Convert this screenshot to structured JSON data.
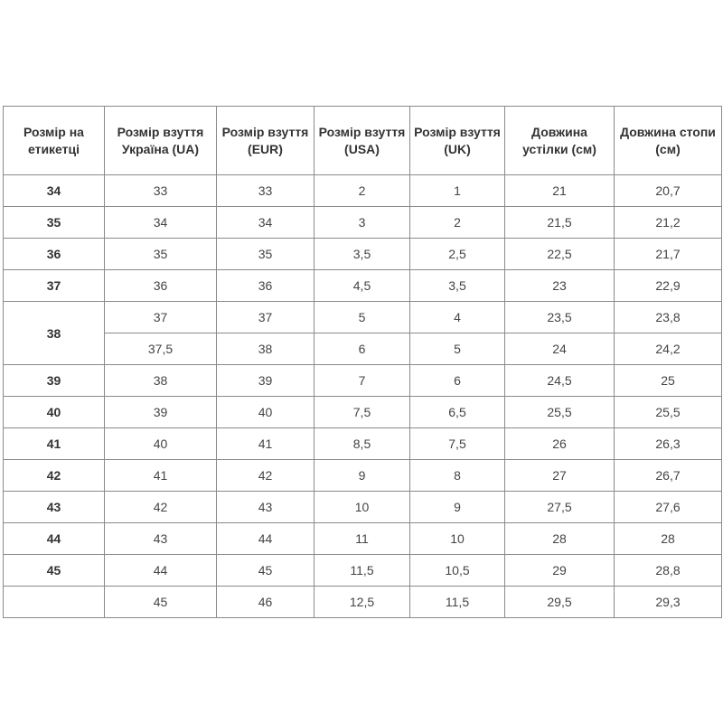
{
  "headers": [
    "Розмір на етикетці",
    "Розмір взуття Україна (UA)",
    "Розмір взуття (EUR)",
    "Розмір взуття (USA)",
    "Розмір взуття (UK)",
    "Довжина устілки (см)",
    "Довжина стопи (см)"
  ],
  "rows": [
    {
      "label": "34",
      "label_rowspan": 1,
      "cells": [
        "33",
        "33",
        "2",
        "1",
        "21",
        "20,7"
      ]
    },
    {
      "label": "35",
      "label_rowspan": 1,
      "cells": [
        "34",
        "34",
        "3",
        "2",
        "21,5",
        "21,2"
      ]
    },
    {
      "label": "36",
      "label_rowspan": 1,
      "cells": [
        "35",
        "35",
        "3,5",
        "2,5",
        "22,5",
        "21,7"
      ]
    },
    {
      "label": "37",
      "label_rowspan": 1,
      "cells": [
        "36",
        "36",
        "4,5",
        "3,5",
        "23",
        "22,9"
      ]
    },
    {
      "label": "38",
      "label_rowspan": 2,
      "cells": [
        "37",
        "37",
        "5",
        "4",
        "23,5",
        "23,8"
      ]
    },
    {
      "label": null,
      "cells": [
        "37,5",
        "38",
        "6",
        "5",
        "24",
        "24,2"
      ]
    },
    {
      "label": "39",
      "label_rowspan": 1,
      "cells": [
        "38",
        "39",
        "7",
        "6",
        "24,5",
        "25"
      ]
    },
    {
      "label": "40",
      "label_rowspan": 1,
      "cells": [
        "39",
        "40",
        "7,5",
        "6,5",
        "25,5",
        "25,5"
      ]
    },
    {
      "label": "41",
      "label_rowspan": 1,
      "cells": [
        "40",
        "41",
        "8,5",
        "7,5",
        "26",
        "26,3"
      ]
    },
    {
      "label": "42",
      "label_rowspan": 1,
      "cells": [
        "41",
        "42",
        "9",
        "8",
        "27",
        "26,7"
      ]
    },
    {
      "label": "43",
      "label_rowspan": 1,
      "cells": [
        "42",
        "43",
        "10",
        "9",
        "27,5",
        "27,6"
      ]
    },
    {
      "label": "44",
      "label_rowspan": 1,
      "cells": [
        "43",
        "44",
        "11",
        "10",
        "28",
        "28"
      ]
    },
    {
      "label": "45",
      "label_rowspan": 1,
      "cells": [
        "44",
        "45",
        "11,5",
        "10,5",
        "29",
        "28,8"
      ]
    },
    {
      "label": "",
      "label_rowspan": 1,
      "cells": [
        "45",
        "46",
        "12,5",
        "11,5",
        "29,5",
        "29,3"
      ]
    }
  ]
}
